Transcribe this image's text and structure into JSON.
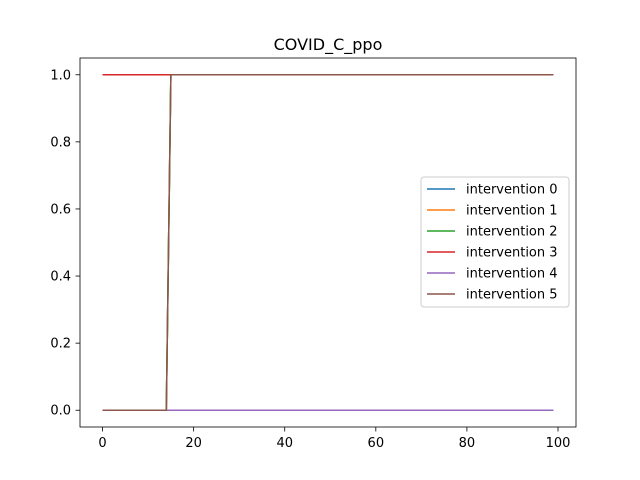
{
  "chart_data": {
    "type": "line",
    "title": "COVID_C_ppo",
    "xlabel": "",
    "ylabel": "",
    "xlim": [
      -4.95,
      103.95
    ],
    "ylim": [
      -0.05,
      1.05
    ],
    "xticks": [
      0,
      20,
      40,
      60,
      80,
      100
    ],
    "xtick_labels": [
      "0",
      "20",
      "40",
      "60",
      "80",
      "100"
    ],
    "yticks": [
      0.0,
      0.2,
      0.4,
      0.6,
      0.8,
      1.0
    ],
    "ytick_labels": [
      "0.0",
      "0.2",
      "0.4",
      "0.6",
      "0.8",
      "1.0"
    ],
    "grid": false,
    "legend_position": "center-right",
    "series": [
      {
        "name": "intervention 0",
        "color": "#1f77b4",
        "x": [
          0,
          14,
          15,
          99
        ],
        "y": [
          0,
          0,
          1,
          1
        ]
      },
      {
        "name": "intervention 1",
        "color": "#ff7f0e",
        "x": [
          0,
          14,
          15,
          99
        ],
        "y": [
          0,
          0,
          1,
          1
        ]
      },
      {
        "name": "intervention 2",
        "color": "#2ca02c",
        "x": [
          0,
          14,
          15,
          99
        ],
        "y": [
          0,
          0,
          1,
          1
        ]
      },
      {
        "name": "intervention 3",
        "color": "#d62728",
        "x": [
          0,
          99
        ],
        "y": [
          1,
          1
        ]
      },
      {
        "name": "intervention 4",
        "color": "#9467bd",
        "x": [
          0,
          99
        ],
        "y": [
          0,
          0
        ]
      },
      {
        "name": "intervention 5",
        "color": "#8c564b",
        "x": [
          0,
          14,
          15,
          99
        ],
        "y": [
          0,
          0,
          1,
          1
        ]
      }
    ]
  }
}
